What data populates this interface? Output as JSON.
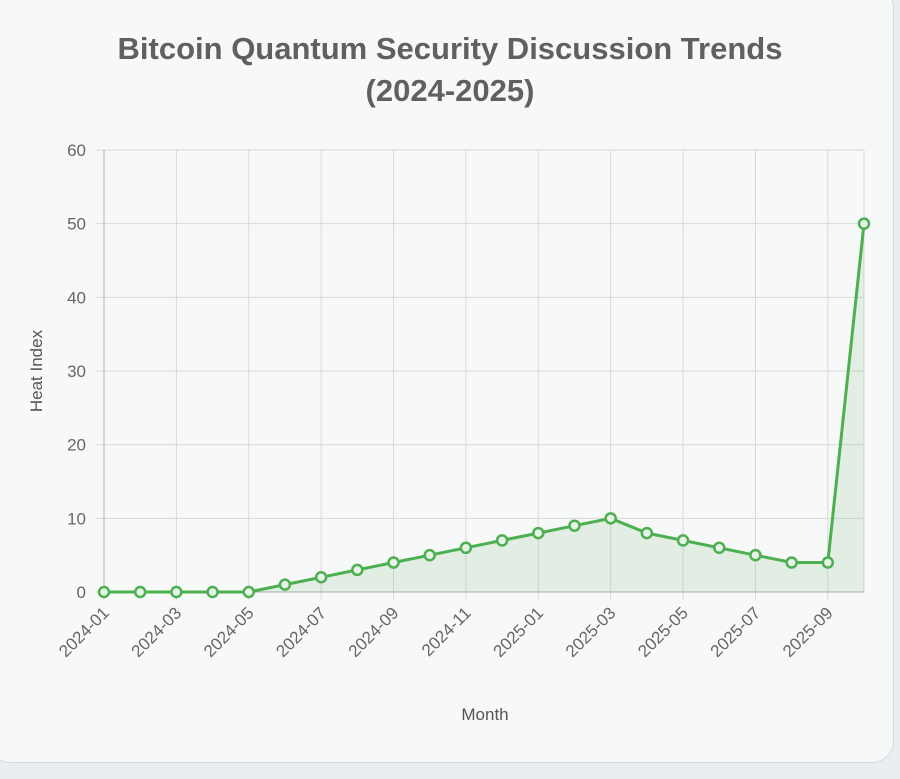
{
  "colors": {
    "line": "#4caf50",
    "fill": "rgba(76,175,80,0.12)",
    "grid": "#d9d9d9",
    "axis": "#bdbdbd"
  },
  "chart_data": {
    "type": "line",
    "title_lines": [
      "Bitcoin Quantum Security Discussion Trends",
      "(2024-2025)"
    ],
    "xlabel": "Month",
    "ylabel": "Heat Index",
    "ylim": [
      0,
      60
    ],
    "y_ticks": [
      "0",
      "10",
      "20",
      "30",
      "40",
      "50",
      "60"
    ],
    "grid": true,
    "x": [
      "2024-01",
      "2024-02",
      "2024-03",
      "2024-04",
      "2024-05",
      "2024-06",
      "2024-07",
      "2024-08",
      "2024-09",
      "2024-10",
      "2024-11",
      "2024-12",
      "2025-01",
      "2025-02",
      "2025-03",
      "2025-04",
      "2025-05",
      "2025-06",
      "2025-07",
      "2025-08",
      "2025-09",
      "2025-10"
    ],
    "x_tick_labels": [
      "2024-01",
      "2024-03",
      "2024-05",
      "2024-07",
      "2024-09",
      "2024-11",
      "2025-01",
      "2025-03",
      "2025-05",
      "2025-07",
      "2025-09"
    ],
    "series": [
      {
        "values": [
          0,
          0,
          0,
          0,
          0,
          1,
          2,
          3,
          4,
          5,
          6,
          7,
          8,
          9,
          10,
          8,
          7,
          6,
          5,
          4,
          4,
          50
        ]
      }
    ]
  }
}
